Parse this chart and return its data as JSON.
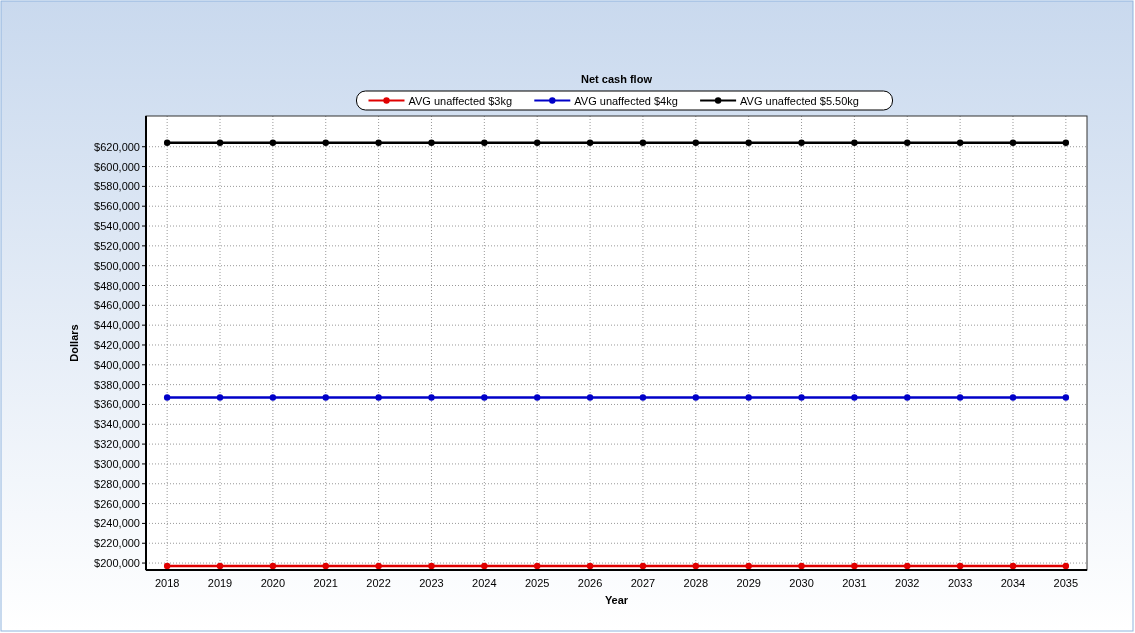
{
  "chart_data": {
    "type": "line",
    "title": "Net cash flow",
    "xlabel": "Year",
    "ylabel": "Dollars",
    "categories": [
      "2018",
      "2019",
      "2020",
      "2021",
      "2022",
      "2023",
      "2024",
      "2025",
      "2026",
      "2027",
      "2028",
      "2029",
      "2030",
      "2031",
      "2032",
      "2033",
      "2034",
      "2035"
    ],
    "series": [
      {
        "name": "AVG unaffected $3kg",
        "color": "#e00000",
        "values": [
          197000,
          197000,
          197000,
          197000,
          197000,
          197000,
          197000,
          197000,
          197000,
          197000,
          197000,
          197000,
          197000,
          197000,
          197000,
          197000,
          197000,
          197000
        ]
      },
      {
        "name": "AVG unaffected $4kg",
        "color": "#0000c8",
        "values": [
          367000,
          367000,
          367000,
          367000,
          367000,
          367000,
          367000,
          367000,
          367000,
          367000,
          367000,
          367000,
          367000,
          367000,
          367000,
          367000,
          367000,
          367000
        ]
      },
      {
        "name": "AVG unaffected $5.50kg",
        "color": "#000000",
        "values": [
          624000,
          624000,
          624000,
          624000,
          624000,
          624000,
          624000,
          624000,
          624000,
          624000,
          624000,
          624000,
          624000,
          624000,
          624000,
          624000,
          624000,
          624000
        ]
      }
    ],
    "ylim": [
      193000,
      651000
    ],
    "yticks": [
      {
        "value": 200000,
        "label": "$200,000"
      },
      {
        "value": 220000,
        "label": "$220,000"
      },
      {
        "value": 240000,
        "label": "$240,000"
      },
      {
        "value": 260000,
        "label": "$260,000"
      },
      {
        "value": 280000,
        "label": "$280,000"
      },
      {
        "value": 300000,
        "label": "$300,000"
      },
      {
        "value": 320000,
        "label": "$320,000"
      },
      {
        "value": 340000,
        "label": "$340,000"
      },
      {
        "value": 360000,
        "label": "$360,000"
      },
      {
        "value": 380000,
        "label": "$380,000"
      },
      {
        "value": 400000,
        "label": "$400,000"
      },
      {
        "value": 420000,
        "label": "$420,000"
      },
      {
        "value": 440000,
        "label": "$440,000"
      },
      {
        "value": 460000,
        "label": "$460,000"
      },
      {
        "value": 480000,
        "label": "$480,000"
      },
      {
        "value": 500000,
        "label": "$500,000"
      },
      {
        "value": 520000,
        "label": "$520,000"
      },
      {
        "value": 540000,
        "label": "$540,000"
      },
      {
        "value": 560000,
        "label": "$560,000"
      },
      {
        "value": 580000,
        "label": "$580,000"
      },
      {
        "value": 600000,
        "label": "$600,000"
      },
      {
        "value": 620000,
        "label": "$620,000"
      }
    ],
    "grid": true,
    "legend": "top",
    "marker": "circle",
    "line_style": "solid"
  }
}
